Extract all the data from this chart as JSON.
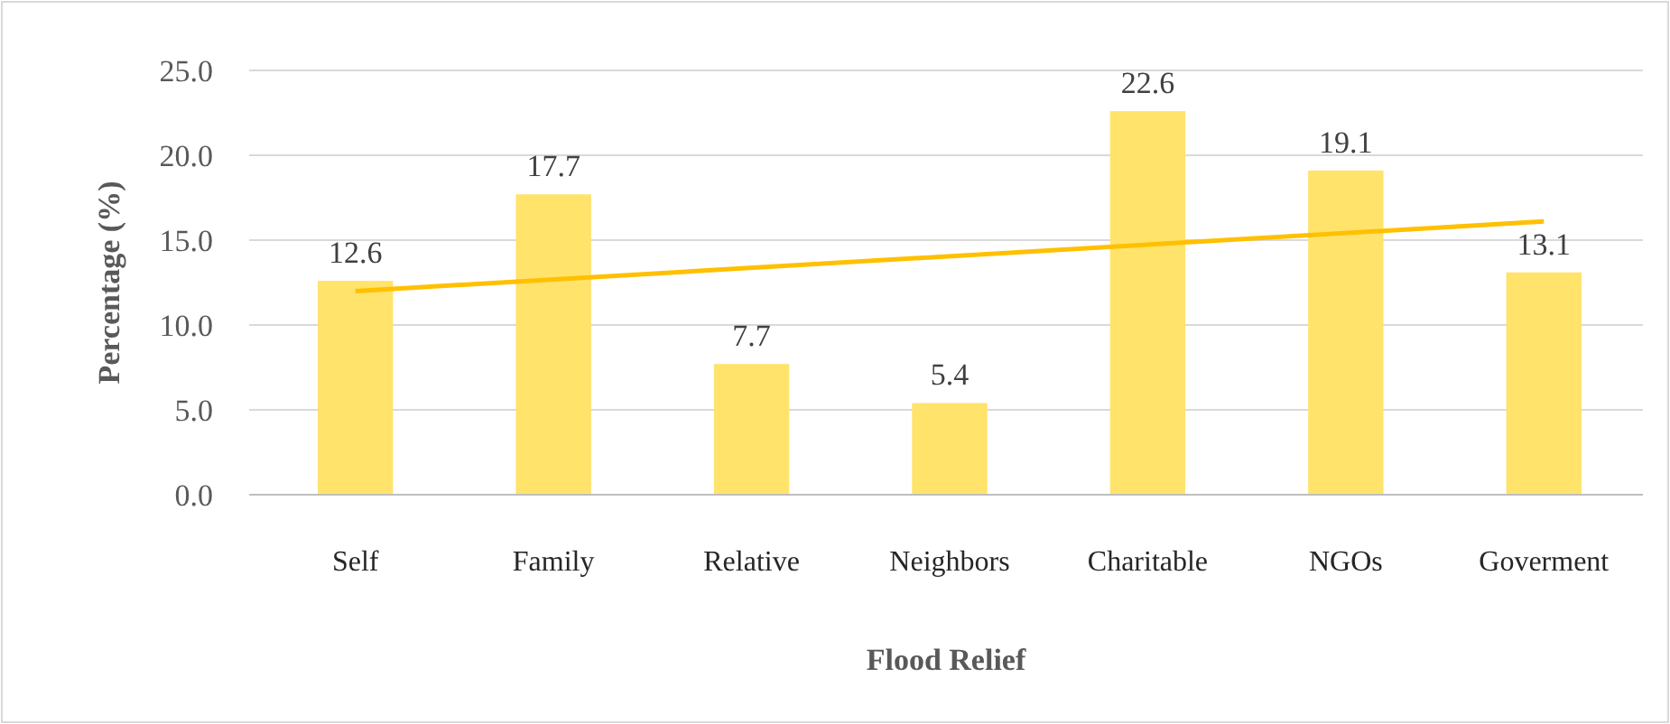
{
  "chart_data": {
    "type": "bar",
    "xlabel": "Flood Relief",
    "ylabel": "Percentage (%)",
    "categories": [
      "Self",
      "Family",
      "Relative",
      "Neighbors",
      "Charitable",
      "NGOs",
      "Goverment"
    ],
    "series": [
      {
        "color": "#ffe36b",
        "values": [
          12.6,
          17.7,
          7.7,
          5.4,
          22.6,
          19.1,
          13.1
        ],
        "value_labels": [
          "12.6",
          "17.7",
          "7.7",
          "5.4",
          "22.6",
          "19.1",
          "13.1"
        ]
      },
      {
        "type": "line",
        "color": "#ffc000",
        "x": [
          "Self",
          "Goverment"
        ],
        "values": [
          12.0,
          16.1
        ]
      }
    ],
    "ylim": [
      0,
      25
    ],
    "yticks": [
      {
        "value": 0,
        "label": "0.0"
      },
      {
        "value": 5,
        "label": "5.0"
      },
      {
        "value": 10,
        "label": "10.0"
      },
      {
        "value": 15,
        "label": "15.0"
      },
      {
        "value": 20,
        "label": "20.0"
      },
      {
        "value": 25,
        "label": "25.0"
      }
    ],
    "grid": "y"
  }
}
